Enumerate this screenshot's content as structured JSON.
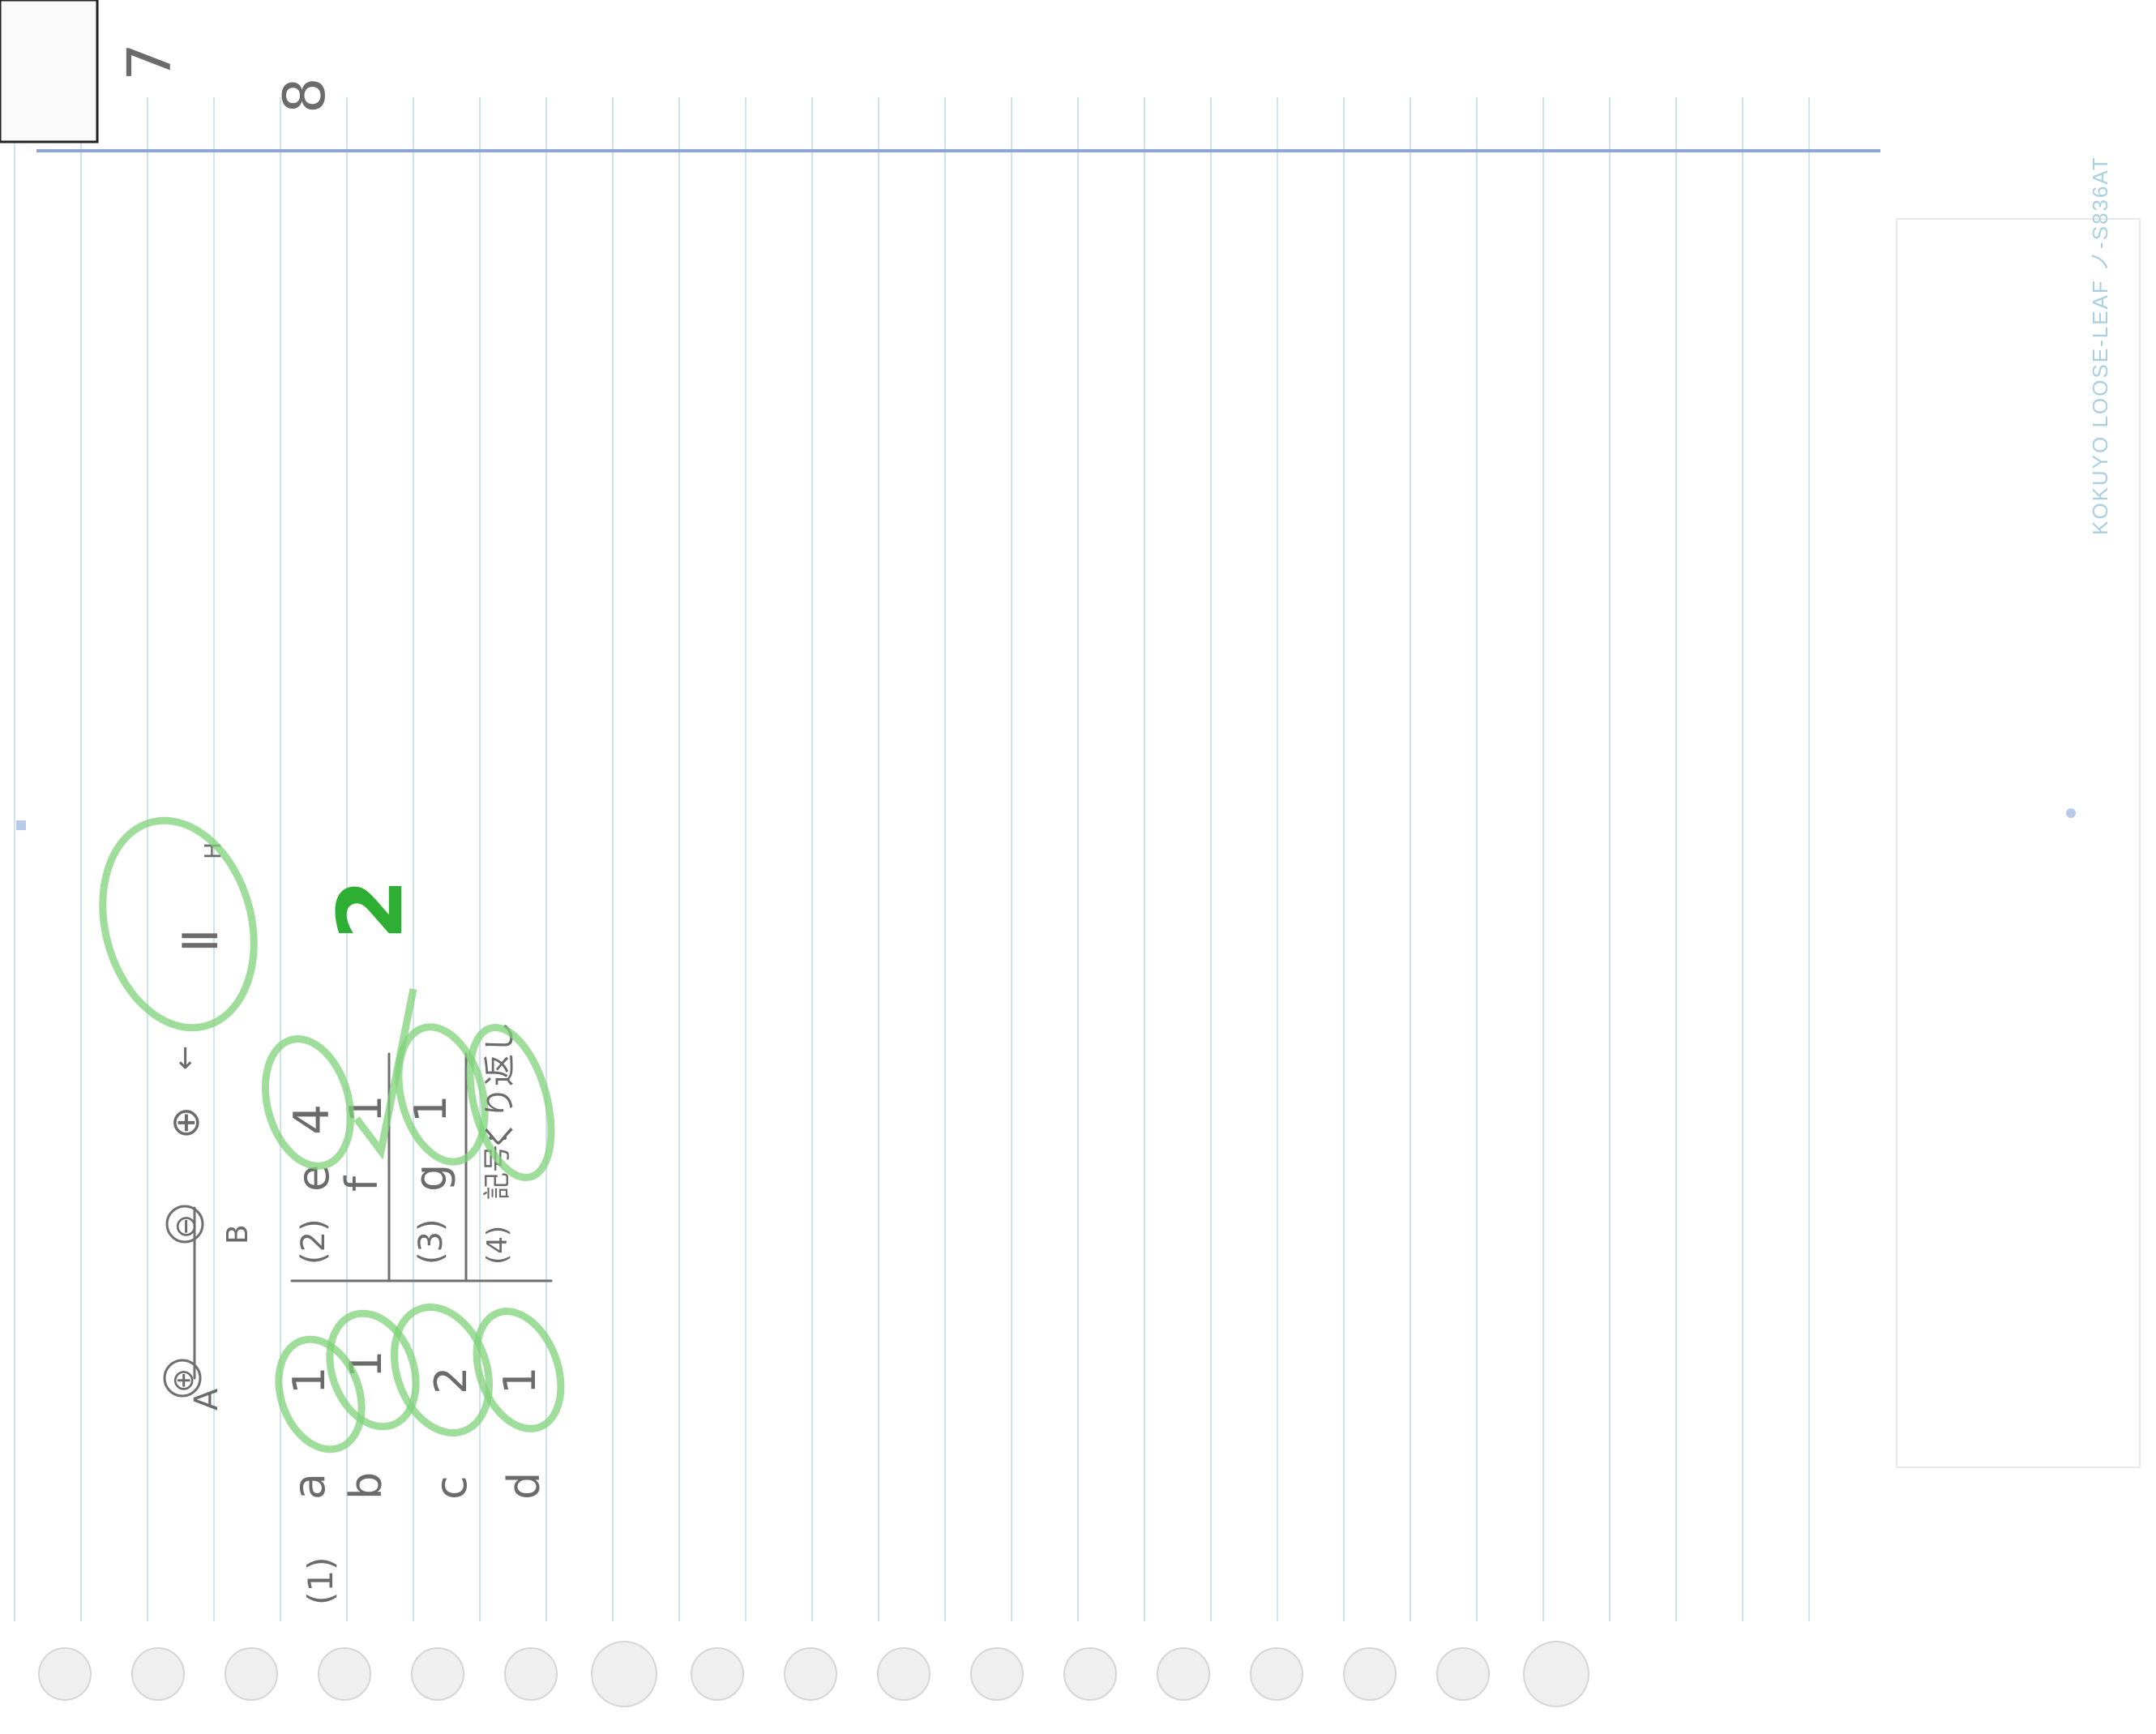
{
  "page_numbers": {
    "left": "7",
    "right": "8"
  },
  "brand_text": "KOKUYO LOOSE-LEAF  ノ-S836AT",
  "green_score": "2",
  "answers": {
    "diagram_labels": {
      "plus_a": "⊕",
      "a": "A",
      "minus_b": "⊖",
      "b": "B",
      "plus": "⊕",
      "arrow": "←",
      "roman": "Ⅱ",
      "h": "H"
    },
    "q1": {
      "label": "(1)",
      "rows": [
        {
          "key": "a",
          "value": "1"
        },
        {
          "key": "b",
          "value": "1"
        },
        {
          "key": "c",
          "value": "2"
        },
        {
          "key": "d",
          "value": "1"
        }
      ]
    },
    "q2": {
      "label": "(2)",
      "rows": [
        {
          "key": "e",
          "value": "4"
        },
        {
          "key": "f",
          "value": "1"
        }
      ]
    },
    "q3": {
      "label": "(3)",
      "rows": [
        {
          "key": "g",
          "value": "1"
        }
      ]
    },
    "q4": {
      "label": "(4)",
      "prefix": "記号：",
      "value": "くり返し"
    }
  },
  "colors": {
    "ruled": "#cfe3ea",
    "margin": "#8ea6d4",
    "green": "#2fae34",
    "pencil": "#6b6b6b"
  }
}
